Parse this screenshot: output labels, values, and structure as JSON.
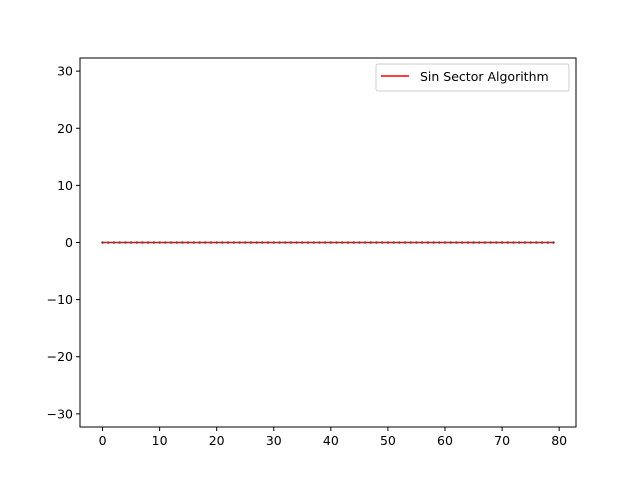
{
  "chart_data": {
    "type": "line",
    "title": "",
    "xlabel": "",
    "ylabel": "",
    "xlim": [
      -3.95,
      82.95
    ],
    "ylim": [
      -32.3,
      32.3
    ],
    "x_ticks": [
      0,
      10,
      20,
      30,
      40,
      50,
      60,
      70,
      80
    ],
    "y_ticks": [
      -30,
      -20,
      -10,
      0,
      10,
      20,
      30
    ],
    "grid": false,
    "legend": {
      "position": "top-right"
    },
    "series": [
      {
        "name": "Sin Sector Algorithm",
        "color": "#ff0000",
        "marker_color": "#555555",
        "x": [
          0,
          1,
          2,
          3,
          4,
          5,
          6,
          7,
          8,
          9,
          10,
          11,
          12,
          13,
          14,
          15,
          16,
          17,
          18,
          19,
          20,
          21,
          22,
          23,
          24,
          25,
          26,
          27,
          28,
          29,
          30,
          31,
          32,
          33,
          34,
          35,
          36,
          37,
          38,
          39,
          40,
          41,
          42,
          43,
          44,
          45,
          46,
          47,
          48,
          49,
          50,
          51,
          52,
          53,
          54,
          55,
          56,
          57,
          58,
          59,
          60,
          61,
          62,
          63,
          64,
          65,
          66,
          67,
          68,
          69,
          70,
          71,
          72,
          73,
          74,
          75,
          76,
          77,
          78,
          79
        ],
        "y": [
          0,
          0,
          0,
          0,
          0,
          0,
          0,
          0,
          0,
          0,
          0,
          0,
          0,
          0,
          0,
          0,
          0,
          0,
          0,
          0,
          0,
          0,
          0,
          0,
          0,
          0,
          0,
          0,
          0,
          0,
          0,
          0,
          0,
          0,
          0,
          0,
          0,
          0,
          0,
          0,
          0,
          0,
          0,
          0,
          0,
          0,
          0,
          0,
          0,
          0,
          0,
          0,
          0,
          0,
          0,
          0,
          0,
          0,
          0,
          0,
          0,
          0,
          0,
          0,
          0,
          0,
          0,
          0,
          0,
          0,
          0,
          0,
          0,
          0,
          0,
          0,
          0,
          0,
          0,
          0
        ]
      }
    ]
  }
}
